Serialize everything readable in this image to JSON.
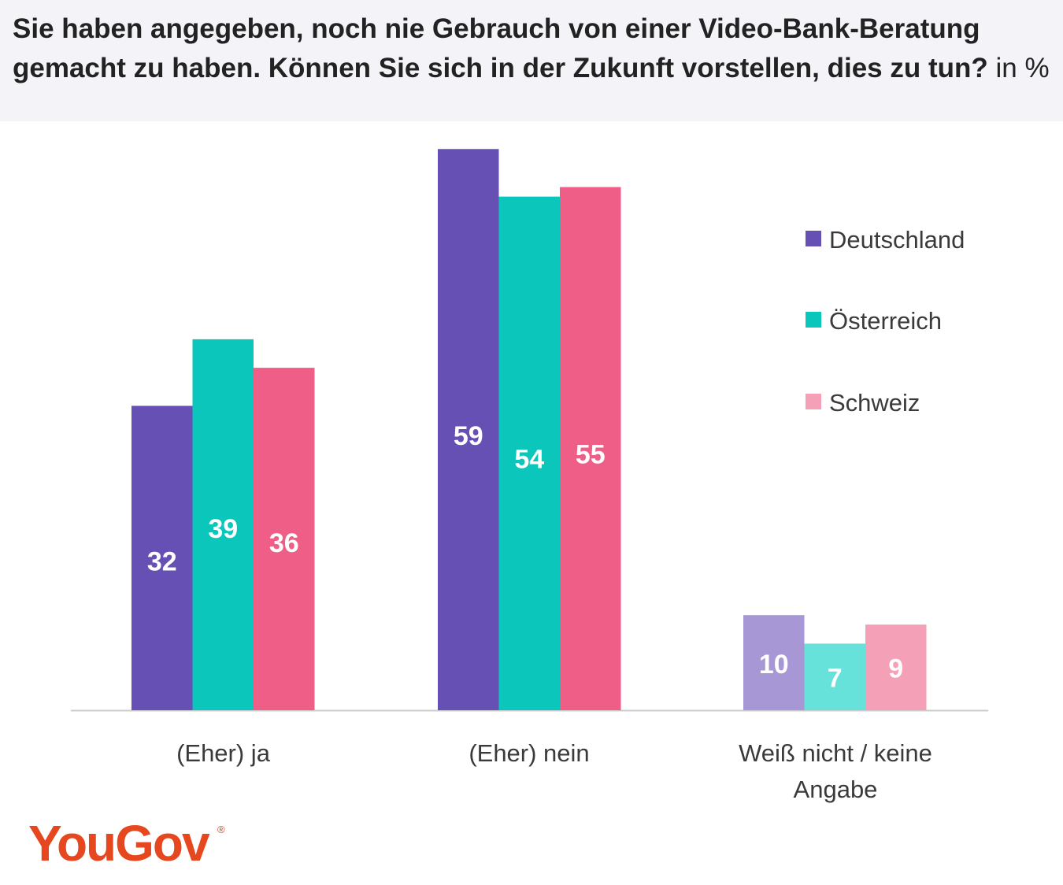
{
  "title": {
    "bold": "Sie haben angegeben, noch nie Gebrauch von einer Video-Bank-Beratung gemacht zu haben. Können Sie sich in der Zukunft vorstellen, dies zu tun?",
    "unit": "in %"
  },
  "chart_data": {
    "type": "bar",
    "categories": [
      "(Eher) ja",
      "(Eher) nein",
      "Weiß nicht / keine Angabe"
    ],
    "series": [
      {
        "name": "Deutschland",
        "values": [
          32,
          59,
          10
        ],
        "color": "#6650b4"
      },
      {
        "name": "Österreich",
        "values": [
          39,
          54,
          7
        ],
        "color": "#0bc6bb"
      },
      {
        "name": "Schweiz",
        "values": [
          36,
          55,
          9
        ],
        "color": "#ef5e87"
      }
    ],
    "muted_colors": [
      "#a797d5",
      "#66e2da",
      "#f4a1b8"
    ],
    "muted_category": 2,
    "ylim": [
      0,
      60
    ],
    "grid": false,
    "legend": "right"
  },
  "brand": {
    "logo_text": "YouGov",
    "registered_mark": "®",
    "color": "#e6471e"
  }
}
